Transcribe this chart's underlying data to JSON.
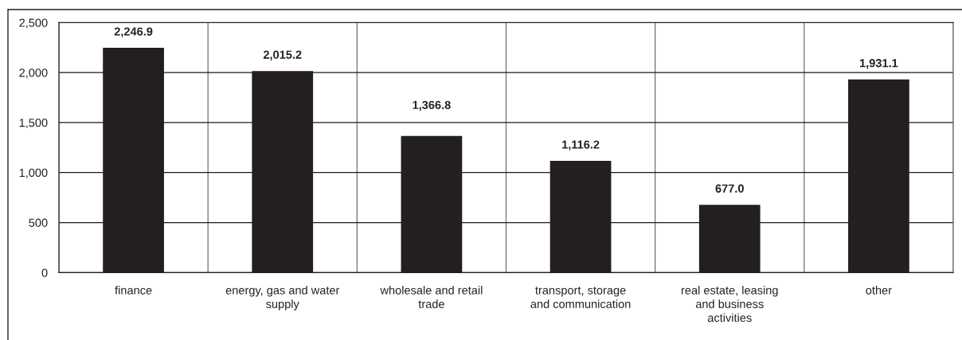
{
  "chart_data": {
    "type": "bar",
    "categories": [
      "finance",
      "energy, gas and water\nsupply",
      "wholesale and retail\ntrade",
      "transport, storage\nand communication",
      "real estate, leasing\nand business\nactivities",
      "other"
    ],
    "values": [
      2246.9,
      2015.2,
      1366.8,
      1116.2,
      677.0,
      1931.1
    ],
    "color": "#231f20",
    "value_labels": [
      "2,246.9",
      "2,015.2",
      "1,366.8",
      "1,116.2",
      "677.0",
      "1,931.1"
    ],
    "ylim": [
      0,
      2500
    ],
    "yticks": [
      0,
      500,
      {
        "value": 1000,
        "label": "1,000"
      },
      {
        "value": 1500,
        "label": "1,500"
      },
      {
        "value": 2000,
        "label": "2,000"
      },
      {
        "value": 2500,
        "label": "2,500"
      }
    ],
    "grid": true
  }
}
